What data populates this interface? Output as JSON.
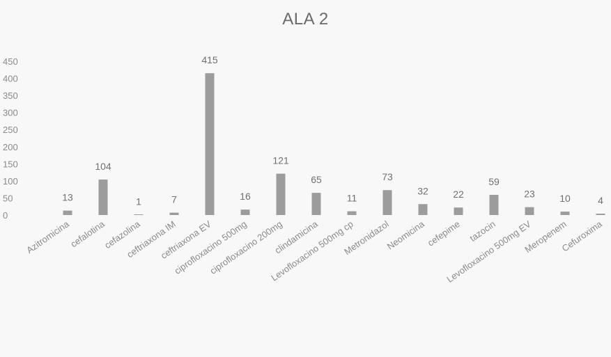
{
  "chart_data": {
    "type": "bar",
    "title": "ALA 2",
    "xlabel": "",
    "ylabel": "",
    "ylim": [
      0,
      450
    ],
    "yticks": [
      0,
      50,
      100,
      150,
      200,
      250,
      300,
      350,
      400,
      450
    ],
    "grid": false,
    "legend": "none",
    "bar_color": "#9c9c9c",
    "categories": [
      "Azitromicina",
      "cefalotina",
      "cefazolina",
      "ceftriaxona IM",
      "ceftriaxona EV",
      "ciprofloxacino 500mg",
      "ciprofloxacino 200mg",
      "clindamicina",
      "Levofloxacino 500mg cp",
      "Metronidazol",
      "Neomicina",
      "cefepime",
      "tazocin",
      "Levofloxacino 500mg EV",
      "Meropenem",
      "Cefuroxima"
    ],
    "values": [
      13,
      104,
      1,
      7,
      415,
      16,
      121,
      65,
      11,
      73,
      32,
      22,
      59,
      23,
      10,
      4
    ]
  }
}
